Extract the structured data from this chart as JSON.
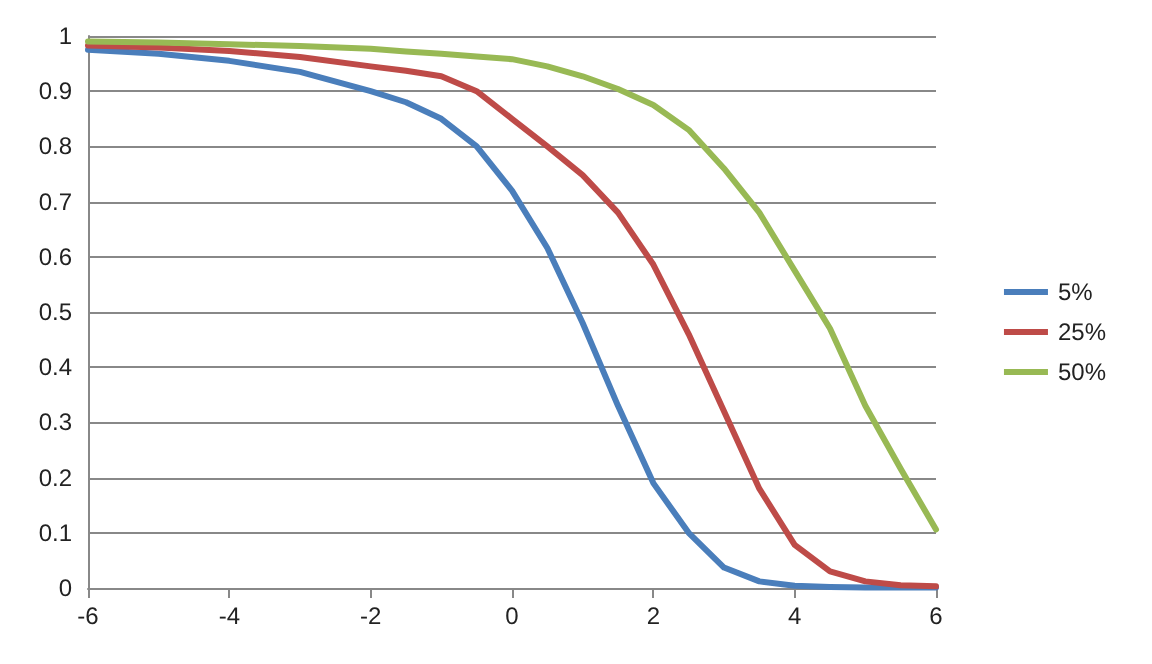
{
  "chart_data": {
    "type": "line",
    "x": [
      -6,
      -5,
      -4,
      -3,
      -2,
      -1.5,
      -1,
      -0.5,
      0,
      0.5,
      1,
      1.5,
      2,
      2.5,
      3,
      3.5,
      4,
      4.5,
      5,
      5.5,
      6
    ],
    "series": [
      {
        "name": "5%",
        "color": "#4a7ebb",
        "values": [
          0.975,
          0.968,
          0.955,
          0.935,
          0.9,
          0.88,
          0.85,
          0.8,
          0.72,
          0.616,
          0.48,
          0.33,
          0.19,
          0.1,
          0.037,
          0.012,
          0.004,
          0.002,
          0.001,
          0.001,
          0.001
        ]
      },
      {
        "name": "25%",
        "color": "#be4b48",
        "values": [
          0.983,
          0.979,
          0.973,
          0.962,
          0.945,
          0.937,
          0.927,
          0.9,
          0.85,
          0.8,
          0.748,
          0.68,
          0.586,
          0.46,
          0.32,
          0.18,
          0.078,
          0.03,
          0.012,
          0.005,
          0.003
        ]
      },
      {
        "name": "50%",
        "color": "#98b954",
        "values": [
          0.99,
          0.988,
          0.985,
          0.982,
          0.977,
          0.972,
          0.968,
          0.963,
          0.958,
          0.945,
          0.927,
          0.904,
          0.875,
          0.83,
          0.76,
          0.68,
          0.575,
          0.47,
          0.33,
          0.216,
          0.106
        ]
      }
    ],
    "xlim": [
      -6,
      6
    ],
    "xticks": [
      -6,
      -4,
      -2,
      0,
      2,
      4,
      6
    ],
    "ylim": [
      0,
      1
    ],
    "yticks": [
      0,
      0.1,
      0.2,
      0.3,
      0.4,
      0.5,
      0.6,
      0.7,
      0.8,
      0.9,
      1
    ],
    "grid": "y",
    "legend": "right",
    "marker": "none",
    "line_style": "solid"
  }
}
